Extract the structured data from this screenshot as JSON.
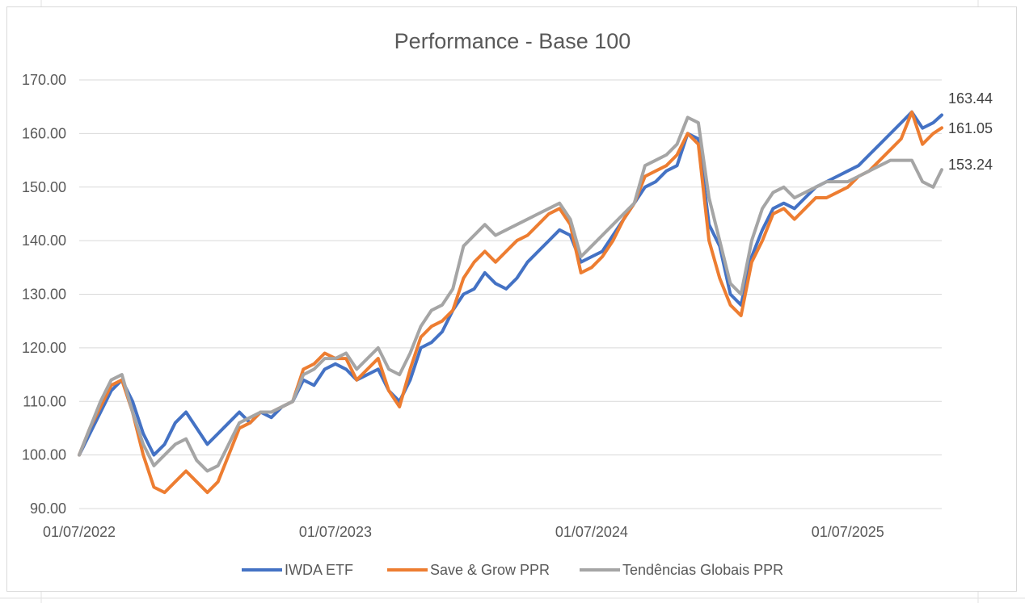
{
  "chart_data": {
    "type": "line",
    "title": "Performance - Base 100",
    "xlabel": "",
    "ylabel": "",
    "ylim": [
      90,
      170
    ],
    "yticks": [
      90,
      100,
      110,
      120,
      130,
      140,
      150,
      160,
      170
    ],
    "ytick_labels": [
      "90.00",
      "100.00",
      "110.00",
      "120.00",
      "130.00",
      "140.00",
      "150.00",
      "160.00",
      "170.00"
    ],
    "xtick_labels": [
      "01/07/2022",
      "01/07/2023",
      "01/07/2024",
      "01/07/2025"
    ],
    "xtick_positions": [
      0,
      12,
      24,
      36
    ],
    "xlim": [
      0,
      40.4
    ],
    "x_unit": "months since 01/07/2022",
    "grid": true,
    "legend": "bottom",
    "series": [
      {
        "name": "IWDA ETF",
        "color": "#4472C4",
        "end_label": "163.44",
        "x": [
          0,
          0.5,
          1,
          1.5,
          2,
          2.5,
          3,
          3.5,
          4,
          4.5,
          5,
          5.5,
          6,
          6.5,
          7,
          7.5,
          8,
          8.5,
          9,
          9.5,
          10,
          10.5,
          11,
          11.5,
          12,
          12.5,
          13,
          13.5,
          14,
          14.5,
          15,
          15.5,
          16,
          16.5,
          17,
          17.5,
          18,
          18.5,
          19,
          19.5,
          20,
          20.5,
          21,
          21.5,
          22,
          22.5,
          23,
          23.5,
          24,
          24.5,
          25,
          25.5,
          26,
          26.5,
          27,
          27.5,
          28,
          28.5,
          29,
          29.5,
          30,
          30.5,
          31,
          31.5,
          32,
          32.5,
          33,
          33.5,
          34,
          34.5,
          35,
          35.5,
          36,
          36.5,
          37,
          37.5,
          38,
          38.5,
          39,
          39.5,
          40,
          40.4
        ],
        "y": [
          100,
          104,
          108,
          112,
          114,
          110,
          104,
          100,
          102,
          106,
          108,
          105,
          102,
          104,
          106,
          108,
          106,
          108,
          107,
          109,
          110,
          114,
          113,
          116,
          117,
          116,
          114,
          115,
          116,
          112,
          110,
          114,
          120,
          121,
          123,
          127,
          130,
          131,
          134,
          132,
          131,
          133,
          136,
          138,
          140,
          142,
          141,
          136,
          137,
          138,
          141,
          144,
          147,
          150,
          151,
          153,
          154,
          160,
          159,
          143,
          139,
          130,
          128,
          137,
          142,
          146,
          147,
          146,
          148,
          150,
          151,
          152,
          153,
          154,
          156,
          158,
          160,
          162,
          164,
          161,
          162,
          163.44
        ]
      },
      {
        "name": "Save & Grow PPR",
        "color": "#ED7D31",
        "end_label": "161.05",
        "x": [
          0,
          0.5,
          1,
          1.5,
          2,
          2.5,
          3,
          3.5,
          4,
          4.5,
          5,
          5.5,
          6,
          6.5,
          7,
          7.5,
          8,
          8.5,
          9,
          9.5,
          10,
          10.5,
          11,
          11.5,
          12,
          12.5,
          13,
          13.5,
          14,
          14.5,
          15,
          15.5,
          16,
          16.5,
          17,
          17.5,
          18,
          18.5,
          19,
          19.5,
          20,
          20.5,
          21,
          21.5,
          22,
          22.5,
          23,
          23.5,
          24,
          24.5,
          25,
          25.5,
          26,
          26.5,
          27,
          27.5,
          28,
          28.5,
          29,
          29.5,
          30,
          30.5,
          31,
          31.5,
          32,
          32.5,
          33,
          33.5,
          34,
          34.5,
          35,
          35.5,
          36,
          36.5,
          37,
          37.5,
          38,
          38.5,
          39,
          39.5,
          40,
          40.4
        ],
        "y": [
          100,
          105,
          109,
          113,
          114,
          108,
          100,
          94,
          93,
          95,
          97,
          95,
          93,
          95,
          100,
          105,
          106,
          108,
          108,
          109,
          110,
          116,
          117,
          119,
          118,
          118,
          114,
          116,
          118,
          112,
          109,
          116,
          122,
          124,
          125,
          127,
          133,
          136,
          138,
          136,
          138,
          140,
          141,
          143,
          145,
          146,
          143,
          134,
          135,
          137,
          140,
          144,
          147,
          152,
          153,
          154,
          156,
          160,
          158,
          140,
          133,
          128,
          126,
          136,
          140,
          145,
          146,
          144,
          146,
          148,
          148,
          149,
          150,
          152,
          153,
          155,
          157,
          159,
          164,
          158,
          160,
          161.05
        ]
      },
      {
        "name": "Tendências Globais PPR",
        "color": "#A5A5A5",
        "end_label": "153.24",
        "x": [
          0,
          0.5,
          1,
          1.5,
          2,
          2.5,
          3,
          3.5,
          4,
          4.5,
          5,
          5.5,
          6,
          6.5,
          7,
          7.5,
          8,
          8.5,
          9,
          9.5,
          10,
          10.5,
          11,
          11.5,
          12,
          12.5,
          13,
          13.5,
          14,
          14.5,
          15,
          15.5,
          16,
          16.5,
          17,
          17.5,
          18,
          18.5,
          19,
          19.5,
          20,
          20.5,
          21,
          21.5,
          22,
          22.5,
          23,
          23.5,
          24,
          24.5,
          25,
          25.5,
          26,
          26.5,
          27,
          27.5,
          28,
          28.5,
          29,
          29.5,
          30,
          30.5,
          31,
          31.5,
          32,
          32.5,
          33,
          33.5,
          34,
          34.5,
          35,
          35.5,
          36,
          36.5,
          37,
          37.5,
          38,
          38.5,
          39,
          39.5,
          40,
          40.4
        ],
        "y": [
          100,
          105,
          110,
          114,
          115,
          108,
          102,
          98,
          100,
          102,
          103,
          99,
          97,
          98,
          102,
          106,
          107,
          108,
          108,
          109,
          110,
          115,
          116,
          118,
          118,
          119,
          116,
          118,
          120,
          116,
          115,
          119,
          124,
          127,
          128,
          131,
          139,
          141,
          143,
          141,
          142,
          143,
          144,
          145,
          146,
          147,
          144,
          137,
          139,
          141,
          143,
          145,
          147,
          154,
          155,
          156,
          158,
          163,
          162,
          148,
          140,
          132,
          130,
          140,
          146,
          149,
          150,
          148,
          149,
          150,
          151,
          151,
          151,
          152,
          153,
          154,
          155,
          155,
          155,
          151,
          150,
          153.24
        ]
      }
    ]
  }
}
